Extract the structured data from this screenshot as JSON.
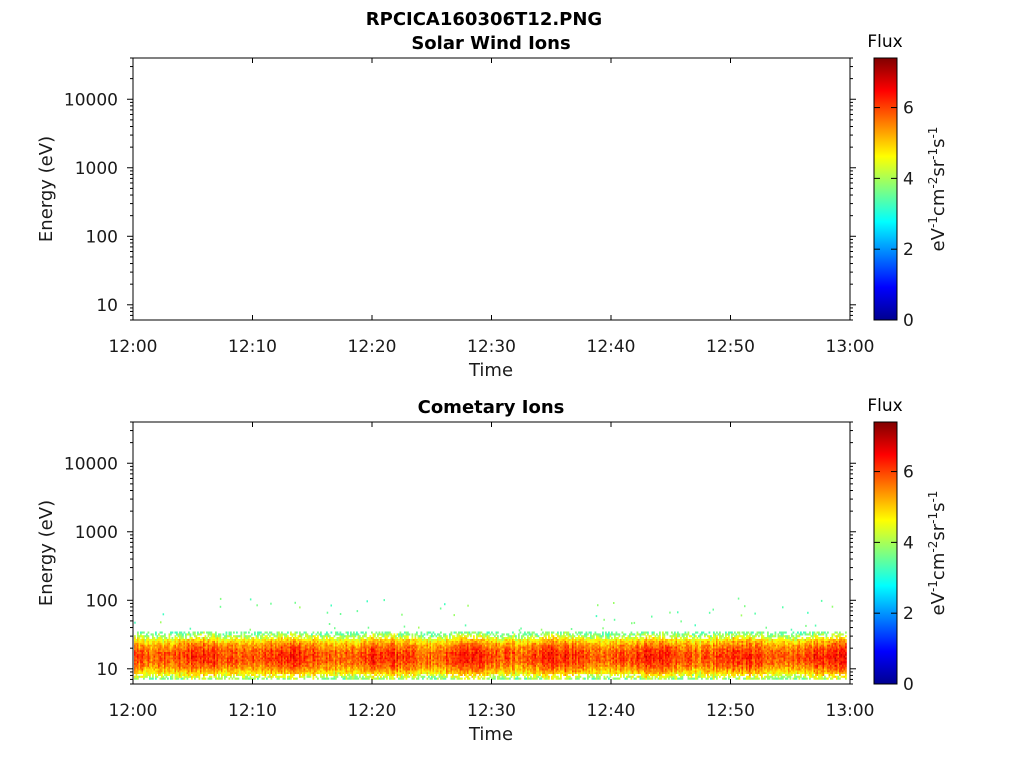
{
  "figure_title": "RPCICA160306T12.PNG",
  "chart_data": [
    {
      "type": "heatmap",
      "title": "Solar Wind Ions",
      "xlabel": "Time",
      "ylabel": "Energy (eV)",
      "x_ticks": [
        "12:00",
        "12:10",
        "12:20",
        "12:30",
        "12:40",
        "12:50",
        "13:00"
      ],
      "x_range": [
        "12:00",
        "13:00"
      ],
      "y_scale": "log",
      "y_ticks": [
        "10",
        "100",
        "1000",
        "10000"
      ],
      "y_range": [
        6,
        40000
      ],
      "colorbar": {
        "title": "Flux",
        "label": "eV-1cm-2sr-1s-1",
        "ticks": [
          "0",
          "2",
          "4",
          "6"
        ],
        "range": [
          0,
          7.4
        ],
        "colormap": "jet"
      },
      "bands": []
    },
    {
      "type": "heatmap",
      "title": "Cometary Ions",
      "xlabel": "Time",
      "ylabel": "Energy (eV)",
      "x_ticks": [
        "12:00",
        "12:10",
        "12:20",
        "12:30",
        "12:40",
        "12:50",
        "13:00"
      ],
      "x_range": [
        "12:00",
        "13:00"
      ],
      "y_scale": "log",
      "y_ticks": [
        "10",
        "100",
        "1000",
        "10000"
      ],
      "y_range": [
        6,
        40000
      ],
      "colorbar": {
        "title": "Flux",
        "label": "eV-1cm-2sr-1s-1",
        "ticks": [
          "0",
          "2",
          "4",
          "6"
        ],
        "range": [
          0,
          7.4
        ],
        "colormap": "jet"
      },
      "bands": [
        {
          "energy_range_eV": [
            7,
            35
          ],
          "flux_range": [
            3.5,
            6.0
          ],
          "peak_energy_eV": 15,
          "time_range": [
            "12:00",
            "13:00"
          ]
        }
      ]
    }
  ]
}
